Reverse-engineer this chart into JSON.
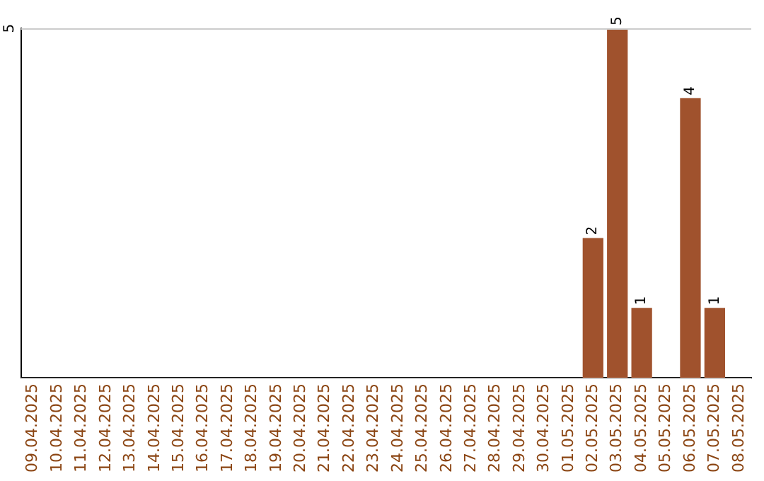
{
  "chart_data": {
    "type": "bar",
    "categories": [
      "09.04.2025",
      "10.04.2025",
      "11.04.2025",
      "12.04.2025",
      "13.04.2025",
      "14.04.2025",
      "15.04.2025",
      "16.04.2025",
      "17.04.2025",
      "18.04.2025",
      "19.04.2025",
      "20.04.2025",
      "21.04.2025",
      "22.04.2025",
      "23.04.2025",
      "24.04.2025",
      "25.04.2025",
      "26.04.2025",
      "27.04.2025",
      "28.04.2025",
      "29.04.2025",
      "30.04.2025",
      "01.05.2025",
      "02.05.2025",
      "03.05.2025",
      "04.05.2025",
      "05.05.2025",
      "06.05.2025",
      "07.05.2025",
      "08.05.2025"
    ],
    "values": [
      null,
      null,
      null,
      null,
      null,
      null,
      null,
      null,
      null,
      null,
      null,
      null,
      null,
      null,
      null,
      null,
      null,
      null,
      null,
      null,
      null,
      null,
      null,
      2,
      5,
      1,
      null,
      4,
      1,
      null
    ],
    "color": "#a0522d",
    "ylim": [
      0,
      5
    ],
    "yticks": [
      {
        "value": 0,
        "label": null
      },
      5
    ],
    "grid": "y",
    "legend": false,
    "data_labels": true
  }
}
